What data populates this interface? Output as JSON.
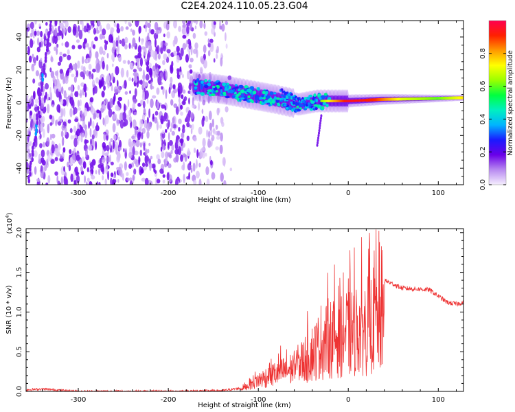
{
  "title": "C2E4.2024.110.05.23.G04",
  "colors": {
    "snr_line": "#ee3333",
    "spectrogram_base": "#7a2de6",
    "colorscale": [
      "#ffffff",
      "#c9a6f5",
      "#7000e0",
      "#2020ff",
      "#00c8ff",
      "#00ff80",
      "#7fff00",
      "#ffff00",
      "#ff8000",
      "#ff0000",
      "#ff0060"
    ]
  },
  "chart_data": [
    {
      "type": "heatmap",
      "xlabel": "Height of straight line (km)",
      "ylabel": "Frequency (Hz)",
      "xlim": [
        -358,
        128
      ],
      "ylim": [
        -50,
        50
      ],
      "x_ticks": [
        -300,
        -200,
        -100,
        0,
        100
      ],
      "y_ticks": [
        -40,
        -20,
        0,
        20,
        40
      ],
      "colorbar": {
        "label": "Normalized spectral amplitude",
        "range": [
          0,
          1
        ],
        "ticks": [
          0.0,
          0.2,
          0.4,
          0.6,
          0.8
        ]
      },
      "ridge": {
        "description_points": [
          {
            "x": -170,
            "y": 10
          },
          {
            "x": -140,
            "y": 8
          },
          {
            "x": -110,
            "y": 5
          },
          {
            "x": -80,
            "y": 2
          },
          {
            "x": -55,
            "y": -1
          },
          {
            "x": -35,
            "y": 1
          },
          {
            "x": -20,
            "y": 1
          },
          {
            "x": 0,
            "y": 1
          },
          {
            "x": 40,
            "y": 2
          },
          {
            "x": 90,
            "y": 2.5
          },
          {
            "x": 128,
            "y": 3
          }
        ]
      },
      "amplitude_profile": [
        {
          "x": -170,
          "amp": 0.45
        },
        {
          "x": -120,
          "amp": 0.4
        },
        {
          "x": -80,
          "amp": 0.45
        },
        {
          "x": -40,
          "amp": 0.5
        },
        {
          "x": -20,
          "amp": 0.75
        },
        {
          "x": 0,
          "amp": 0.95
        },
        {
          "x": 30,
          "amp": 0.9
        },
        {
          "x": 60,
          "amp": 0.7
        },
        {
          "x": 100,
          "amp": 0.6
        },
        {
          "x": 128,
          "amp": 0.75
        }
      ]
    },
    {
      "type": "line",
      "xlabel": "Height of straight line (km)",
      "ylabel": "SNR (10 * v/v)",
      "y_multiplier": "(x10",
      "y_multiplier_exp": "4",
      "y_multiplier_close": ")",
      "xlim": [
        -358,
        128
      ],
      "ylim": [
        0,
        2.05
      ],
      "x_ticks": [
        -300,
        -200,
        -100,
        0,
        100
      ],
      "y_ticks": [
        0.0,
        0.5,
        1.0,
        1.5,
        2.0
      ],
      "envelope": [
        {
          "x": -358,
          "y": 0.02
        },
        {
          "x": -340,
          "y": 0.03
        },
        {
          "x": -300,
          "y": 0.0
        },
        {
          "x": -200,
          "y": 0.0
        },
        {
          "x": -140,
          "y": 0.01
        },
        {
          "x": -120,
          "y": 0.04
        },
        {
          "x": -100,
          "y": 0.22
        },
        {
          "x": -80,
          "y": 0.35
        },
        {
          "x": -60,
          "y": 0.45
        },
        {
          "x": -40,
          "y": 0.75
        },
        {
          "x": -25,
          "y": 1.0
        },
        {
          "x": -10,
          "y": 1.1
        },
        {
          "x": 10,
          "y": 1.2
        },
        {
          "x": 25,
          "y": 1.3
        },
        {
          "x": 40,
          "y": 1.4
        },
        {
          "x": 60,
          "y": 1.3
        },
        {
          "x": 90,
          "y": 1.28
        },
        {
          "x": 110,
          "y": 1.12
        },
        {
          "x": 120,
          "y": 1.1
        },
        {
          "x": 128,
          "y": 1.12
        }
      ],
      "peak": {
        "x": 31,
        "y": 2.04
      }
    }
  ]
}
